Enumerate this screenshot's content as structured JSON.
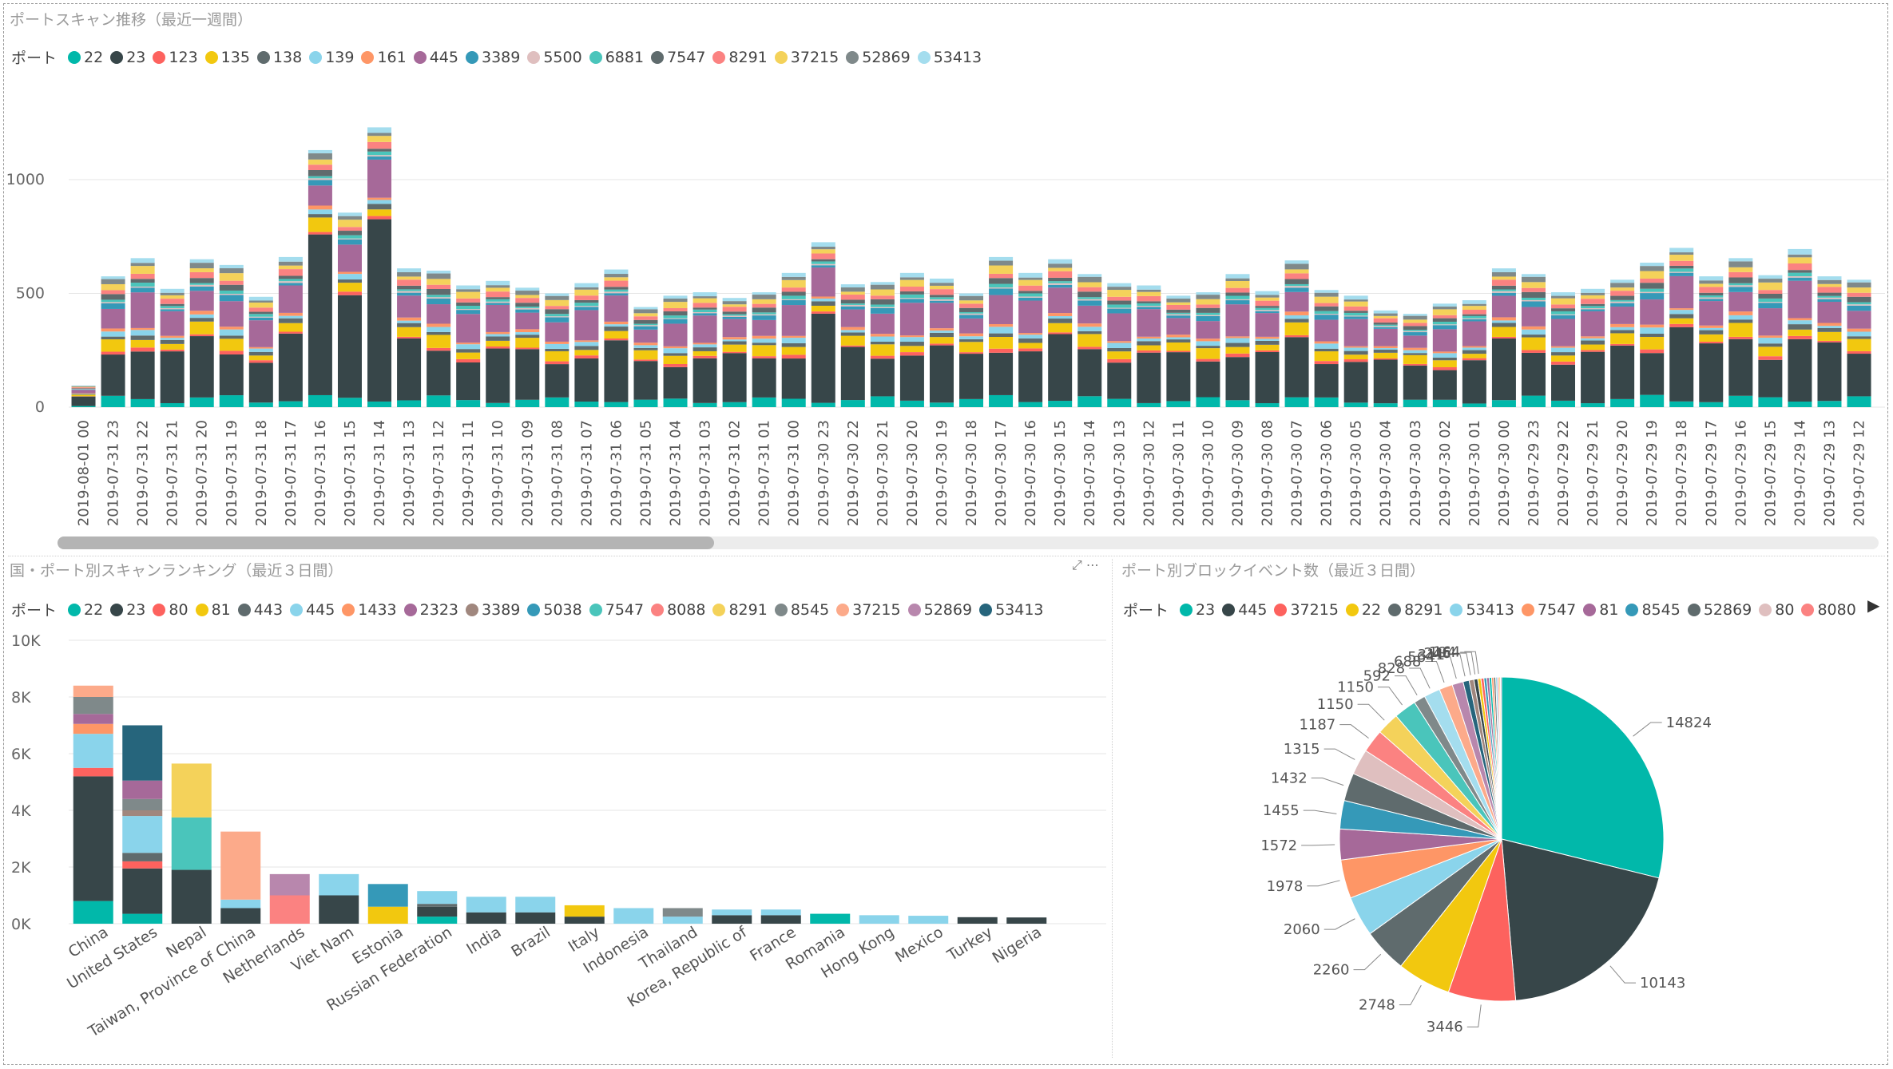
{
  "top": {
    "title": "ポートスキャン推移（最近一週間）",
    "legend_title": "ポート",
    "legend": [
      {
        "label": "22",
        "color": "#01B8AA"
      },
      {
        "label": "23",
        "color": "#374649"
      },
      {
        "label": "123",
        "color": "#FD625E"
      },
      {
        "label": "135",
        "color": "#F2C80F"
      },
      {
        "label": "138",
        "color": "#5F6B6D"
      },
      {
        "label": "139",
        "color": "#8AD4EB"
      },
      {
        "label": "161",
        "color": "#FE9666"
      },
      {
        "label": "445",
        "color": "#A66999"
      },
      {
        "label": "3389",
        "color": "#3599B8"
      },
      {
        "label": "5500",
        "color": "#DFBFBF"
      },
      {
        "label": "6881",
        "color": "#4AC5BB"
      },
      {
        "label": "7547",
        "color": "#5F6B6D"
      },
      {
        "label": "8291",
        "color": "#FB8281"
      },
      {
        "label": "37215",
        "color": "#F4D25A"
      },
      {
        "label": "52869",
        "color": "#7F898A"
      },
      {
        "label": "53413",
        "color": "#A4DDEE"
      }
    ]
  },
  "bottom_left": {
    "title": "国・ポート別スキャンランキング（最近３日間）",
    "legend_title": "ポート",
    "legend": [
      {
        "label": "22",
        "color": "#01B8AA"
      },
      {
        "label": "23",
        "color": "#374649"
      },
      {
        "label": "80",
        "color": "#FD625E"
      },
      {
        "label": "81",
        "color": "#F2C80F"
      },
      {
        "label": "443",
        "color": "#5F6B6D"
      },
      {
        "label": "445",
        "color": "#8AD4EB"
      },
      {
        "label": "1433",
        "color": "#FE9666"
      },
      {
        "label": "2323",
        "color": "#A66999"
      },
      {
        "label": "3389",
        "color": "#A0877E"
      },
      {
        "label": "5038",
        "color": "#3599B8"
      },
      {
        "label": "7547",
        "color": "#4AC5BB"
      },
      {
        "label": "8088",
        "color": "#FB8281"
      },
      {
        "label": "8291",
        "color": "#F4D25A"
      },
      {
        "label": "8545",
        "color": "#7F898A"
      },
      {
        "label": "37215",
        "color": "#FCAA8A"
      },
      {
        "label": "52869",
        "color": "#B887AD"
      },
      {
        "label": "53413",
        "color": "#26657C"
      }
    ]
  },
  "bottom_right": {
    "title": "ポート別ブロックイベント数（最近３日間）",
    "legend_title": "ポート",
    "legend": [
      {
        "label": "23",
        "color": "#01B8AA"
      },
      {
        "label": "445",
        "color": "#374649"
      },
      {
        "label": "37215",
        "color": "#FD625E"
      },
      {
        "label": "22",
        "color": "#F2C80F"
      },
      {
        "label": "8291",
        "color": "#5F6B6D"
      },
      {
        "label": "53413",
        "color": "#8AD4EB"
      },
      {
        "label": "7547",
        "color": "#FE9666"
      },
      {
        "label": "81",
        "color": "#A66999"
      },
      {
        "label": "8545",
        "color": "#3599B8"
      },
      {
        "label": "52869",
        "color": "#5F6B6D"
      },
      {
        "label": "80",
        "color": "#DFBFBF"
      },
      {
        "label": "8080",
        "color": "#FB8281"
      }
    ]
  },
  "chart_data": [
    {
      "type": "bar",
      "stacked": true,
      "ylim": [
        0,
        1200
      ],
      "yticks": [
        {
          "v": 0,
          "label": "0"
        },
        {
          "v": 500,
          "label": "500"
        },
        {
          "v": 1000,
          "label": "1000"
        }
      ],
      "categories": [
        "2019-08-01 00",
        "2019-07-31 23",
        "2019-07-31 22",
        "2019-07-31 21",
        "2019-07-31 20",
        "2019-07-31 19",
        "2019-07-31 18",
        "2019-07-31 17",
        "2019-07-31 16",
        "2019-07-31 15",
        "2019-07-31 14",
        "2019-07-31 13",
        "2019-07-31 12",
        "2019-07-31 11",
        "2019-07-31 10",
        "2019-07-31 09",
        "2019-07-31 08",
        "2019-07-31 07",
        "2019-07-31 06",
        "2019-07-31 05",
        "2019-07-31 04",
        "2019-07-31 03",
        "2019-07-31 02",
        "2019-07-31 01",
        "2019-07-31 00",
        "2019-07-30 23",
        "2019-07-30 22",
        "2019-07-30 21",
        "2019-07-30 20",
        "2019-07-30 19",
        "2019-07-30 18",
        "2019-07-30 17",
        "2019-07-30 16",
        "2019-07-30 15",
        "2019-07-30 14",
        "2019-07-30 13",
        "2019-07-30 12",
        "2019-07-30 11",
        "2019-07-30 10",
        "2019-07-30 09",
        "2019-07-30 08",
        "2019-07-30 07",
        "2019-07-30 06",
        "2019-07-30 05",
        "2019-07-30 04",
        "2019-07-30 03",
        "2019-07-30 02",
        "2019-07-30 01",
        "2019-07-30 00",
        "2019-07-29 23",
        "2019-07-29 22",
        "2019-07-29 21",
        "2019-07-29 20",
        "2019-07-29 19",
        "2019-07-29 18",
        "2019-07-29 17",
        "2019-07-29 16",
        "2019-07-29 15",
        "2019-07-29 14",
        "2019-07-29 13",
        "2019-07-29 12"
      ],
      "totals": [
        95,
        575,
        655,
        520,
        650,
        625,
        485,
        660,
        1130,
        855,
        1230,
        610,
        600,
        535,
        555,
        525,
        500,
        545,
        605,
        440,
        490,
        505,
        480,
        505,
        590,
        725,
        540,
        550,
        590,
        565,
        500,
        660,
        590,
        650,
        585,
        545,
        535,
        490,
        505,
        585,
        510,
        645,
        515,
        490,
        425,
        410,
        455,
        470,
        610,
        585,
        505,
        520,
        560,
        635,
        700,
        575,
        655,
        580,
        695,
        575,
        560
      ],
      "ports": [
        "22",
        "23",
        "123",
        "135",
        "138",
        "139",
        "161",
        "445",
        "3389",
        "5500",
        "6881",
        "7547",
        "8291",
        "37215",
        "52869",
        "53413"
      ],
      "colors": [
        "#01B8AA",
        "#374649",
        "#FD625E",
        "#F2C80F",
        "#5F6B6D",
        "#8AD4EB",
        "#FE9666",
        "#A66999",
        "#3599B8",
        "#DFBFBF",
        "#4AC5BB",
        "#5F6B6D",
        "#FB8281",
        "#F4D25A",
        "#7F898A",
        "#A4DDEE"
      ]
    },
    {
      "type": "bar",
      "stacked": true,
      "ylim": [
        0,
        10000
      ],
      "yticks": [
        {
          "v": 0,
          "label": "0K"
        },
        {
          "v": 2000,
          "label": "2K"
        },
        {
          "v": 4000,
          "label": "4K"
        },
        {
          "v": 6000,
          "label": "6K"
        },
        {
          "v": 8000,
          "label": "8K"
        },
        {
          "v": 10000,
          "label": "10K"
        }
      ],
      "categories": [
        "China",
        "United States",
        "Nepal",
        "Taiwan, Province of China",
        "Netherlands",
        "Viet Nam",
        "Estonia",
        "Russian Federation",
        "India",
        "Brazil",
        "Italy",
        "Indonesia",
        "Thailand",
        "Korea, Republic of",
        "France",
        "Romania",
        "Hong Kong",
        "Mexico",
        "Turkey",
        "Nigeria"
      ],
      "series": [
        [
          {
            "port": "22",
            "v": 800
          },
          {
            "port": "23",
            "v": 4400
          },
          {
            "port": "80",
            "v": 300
          },
          {
            "port": "445",
            "v": 1200
          },
          {
            "port": "1433",
            "v": 350
          },
          {
            "port": "2323",
            "v": 350
          },
          {
            "port": "8545",
            "v": 600
          },
          {
            "port": "37215",
            "v": 400
          }
        ],
        [
          {
            "port": "22",
            "v": 350
          },
          {
            "port": "23",
            "v": 1600
          },
          {
            "port": "80",
            "v": 250
          },
          {
            "port": "443",
            "v": 300
          },
          {
            "port": "445",
            "v": 1300
          },
          {
            "port": "3389",
            "v": 200
          },
          {
            "port": "8545",
            "v": 400
          },
          {
            "port": "2323",
            "v": 650
          },
          {
            "port": "53413",
            "v": 1950
          }
        ],
        [
          {
            "port": "23",
            "v": 1900
          },
          {
            "port": "7547",
            "v": 1850
          },
          {
            "port": "8291",
            "v": 1900
          }
        ],
        [
          {
            "port": "23",
            "v": 550
          },
          {
            "port": "445",
            "v": 300
          },
          {
            "port": "37215",
            "v": 2400
          }
        ],
        [
          {
            "port": "8088",
            "v": 1000
          },
          {
            "port": "52869",
            "v": 750
          }
        ],
        [
          {
            "port": "23",
            "v": 1000
          },
          {
            "port": "445",
            "v": 750
          }
        ],
        [
          {
            "port": "81",
            "v": 600
          },
          {
            "port": "5038",
            "v": 800
          }
        ],
        [
          {
            "port": "22",
            "v": 250
          },
          {
            "port": "23",
            "v": 350
          },
          {
            "port": "443",
            "v": 100
          },
          {
            "port": "445",
            "v": 450
          }
        ],
        [
          {
            "port": "23",
            "v": 400
          },
          {
            "port": "445",
            "v": 550
          }
        ],
        [
          {
            "port": "23",
            "v": 400
          },
          {
            "port": "445",
            "v": 550
          }
        ],
        [
          {
            "port": "23",
            "v": 250
          },
          {
            "port": "81",
            "v": 400
          }
        ],
        [
          {
            "port": "445",
            "v": 550
          }
        ],
        [
          {
            "port": "445",
            "v": 250
          },
          {
            "port": "8545",
            "v": 300
          }
        ],
        [
          {
            "port": "23",
            "v": 300
          },
          {
            "port": "445",
            "v": 200
          }
        ],
        [
          {
            "port": "23",
            "v": 300
          },
          {
            "port": "445",
            "v": 200
          }
        ],
        [
          {
            "port": "22",
            "v": 350
          }
        ],
        [
          {
            "port": "445",
            "v": 300
          }
        ],
        [
          {
            "port": "445",
            "v": 280
          }
        ],
        [
          {
            "port": "23",
            "v": 230
          }
        ],
        [
          {
            "port": "23",
            "v": 220
          }
        ]
      ]
    },
    {
      "type": "pie",
      "values": [
        14824,
        10143,
        3446,
        2748,
        2260,
        2060,
        1978,
        1572,
        1455,
        1432,
        1315,
        1187,
        1150,
        1150,
        592,
        828,
        688,
        564,
        311,
        246,
        194,
        164,
        150,
        140,
        130,
        120,
        110,
        100,
        90,
        80,
        70,
        60
      ],
      "labels": [
        "14824",
        "10143",
        "3446",
        "2748",
        "2260",
        "2060",
        "1978",
        "1572",
        "1455",
        "1432",
        "1315",
        "1187",
        "1150",
        "1150",
        "592",
        "828",
        "688",
        "564",
        "311",
        "246",
        "194",
        "164",
        "",
        "",
        "",
        "",
        "",
        "",
        "",
        "",
        "",
        ""
      ],
      "colors": [
        "#01B8AA",
        "#374649",
        "#FD625E",
        "#F2C80F",
        "#5F6B6D",
        "#8AD4EB",
        "#FE9666",
        "#A66999",
        "#3599B8",
        "#5F6B6D",
        "#DFBFBF",
        "#FB8281",
        "#F4D25A",
        "#4AC5BB",
        "#7F898A",
        "#A4DDEE",
        "#FCAA8A",
        "#B887AD",
        "#26657C",
        "#A0877E",
        "#374649",
        "#F2C80F",
        "#FD625E",
        "#3599B8",
        "#A66999",
        "#01B8AA",
        "#FE9666",
        "#5F6B6D",
        "#8AD4EB",
        "#FB8281",
        "#F4D25A",
        "#B887AD"
      ]
    }
  ]
}
